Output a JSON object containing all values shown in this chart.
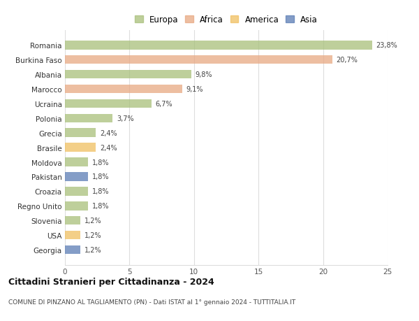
{
  "countries": [
    "Romania",
    "Burkina Faso",
    "Albania",
    "Marocco",
    "Ucraina",
    "Polonia",
    "Grecia",
    "Brasile",
    "Moldova",
    "Pakistan",
    "Croazia",
    "Regno Unito",
    "Slovenia",
    "USA",
    "Georgia"
  ],
  "values": [
    23.8,
    20.7,
    9.8,
    9.1,
    6.7,
    3.7,
    2.4,
    2.4,
    1.8,
    1.8,
    1.8,
    1.8,
    1.2,
    1.2,
    1.2
  ],
  "labels": [
    "23,8%",
    "20,7%",
    "9,8%",
    "9,1%",
    "6,7%",
    "3,7%",
    "2,4%",
    "2,4%",
    "1,8%",
    "1,8%",
    "1,8%",
    "1,8%",
    "1,2%",
    "1,2%",
    "1,2%"
  ],
  "continents": [
    "Europa",
    "Africa",
    "Europa",
    "Africa",
    "Europa",
    "Europa",
    "Europa",
    "America",
    "Europa",
    "Asia",
    "Europa",
    "Europa",
    "Europa",
    "America",
    "Asia"
  ],
  "continent_colors": {
    "Europa": "#a8c07a",
    "Africa": "#e8a882",
    "America": "#f0c060",
    "Asia": "#5b7db5"
  },
  "legend_order": [
    "Europa",
    "Africa",
    "America",
    "Asia"
  ],
  "title": "Cittadini Stranieri per Cittadinanza - 2024",
  "subtitle": "COMUNE DI PINZANO AL TAGLIAMENTO (PN) - Dati ISTAT al 1° gennaio 2024 - TUTTITALIA.IT",
  "xlim": [
    0,
    25
  ],
  "xticks": [
    0,
    5,
    10,
    15,
    20,
    25
  ],
  "background_color": "#ffffff",
  "bar_alpha": 0.75,
  "grid_color": "#dddddd"
}
